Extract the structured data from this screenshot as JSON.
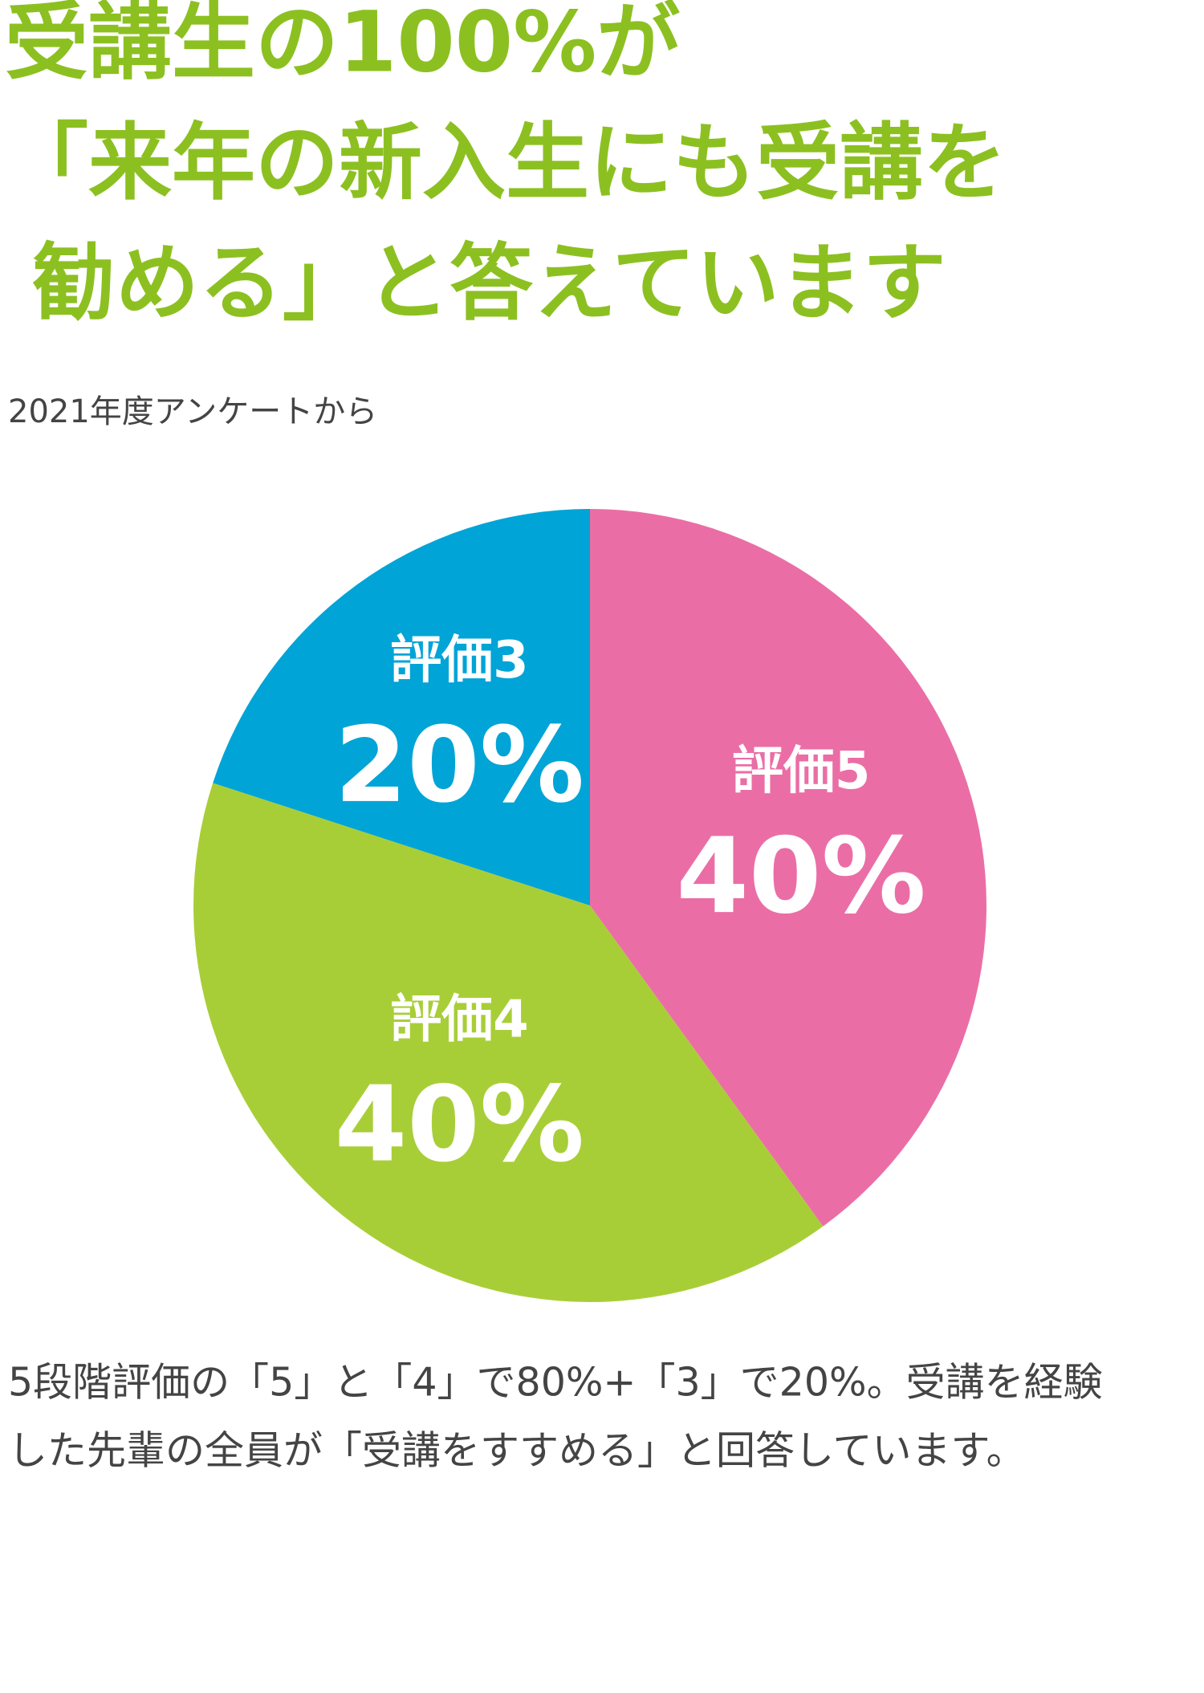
{
  "chart_data": {
    "type": "pie",
    "title": [
      "受講生の100%が",
      "「来年の新入生にも受講を",
      "勧める」と答えています"
    ],
    "subtitle": "2021年度アンケートから",
    "categories": [
      "評価5",
      "評価4",
      "評価3"
    ],
    "values": [
      40,
      40,
      20
    ],
    "value_labels": [
      "40%",
      "40%",
      "20%"
    ],
    "colors": [
      "#ea6ea5",
      "#a8ce37",
      "#00a4d6"
    ],
    "note": [
      "5段階評価の「5」と「4」で80%+「3」で20%。受講を経験",
      "した先輩の全員が「受講をすすめる」と回答しています。"
    ]
  }
}
